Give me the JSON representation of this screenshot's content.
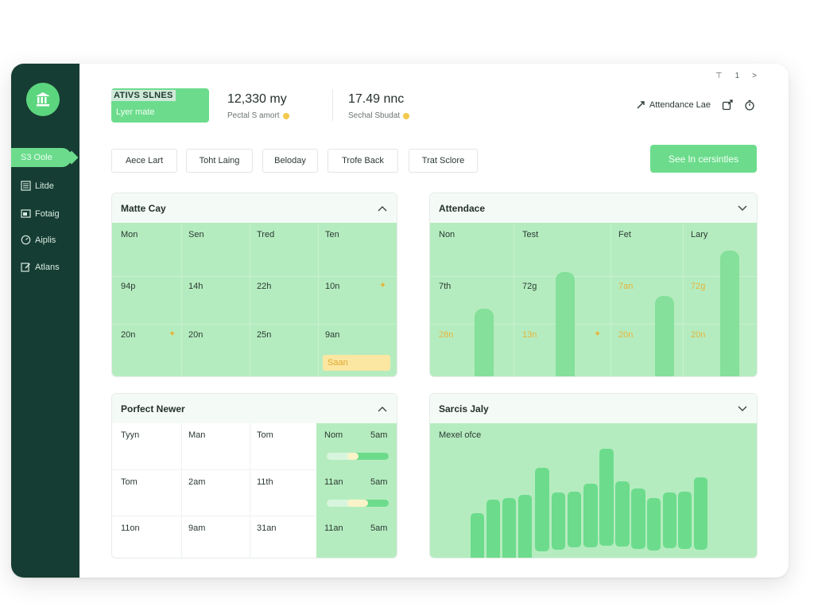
{
  "sidebar": {
    "active_label": "S3 Oole",
    "items": [
      {
        "label": "Litde",
        "icon": "list-icon"
      },
      {
        "label": "Fotaig",
        "icon": "image-icon"
      },
      {
        "label": "Aiplis",
        "icon": "gauge-icon"
      },
      {
        "label": "Atlans",
        "icon": "edit-icon"
      }
    ],
    "logo_icon": "bank-icon"
  },
  "window_controls": [
    "⊤",
    "1",
    ">"
  ],
  "stats": {
    "green_card": {
      "title": "ATIVS SLNES",
      "subtitle": "Lyer mate"
    },
    "stat1": {
      "value": "12,330 my",
      "label": "Pectal S amort"
    },
    "stat2": {
      "value": "17.49 nnc",
      "label": "Sechal Sbudat"
    }
  },
  "top_right": {
    "link_label": "Attendance Lae",
    "icons": [
      "link-icon",
      "share-icon",
      "timer-icon"
    ]
  },
  "tabs": [
    "Aece Lart",
    "Toht Laing",
    "Beloday",
    "Trofe Back",
    "Trat Sclore"
  ],
  "cta_label": "See ln cersintles",
  "panel_matte": {
    "title": "Matte Cay",
    "header_row": [
      "Mon",
      "Sen",
      "Tred",
      "Ten"
    ],
    "row2": [
      "94p",
      "14h",
      "22h",
      "10n"
    ],
    "row3": [
      "20n",
      "20n",
      "25n",
      "9an"
    ],
    "badge": "Saan"
  },
  "panel_attendance": {
    "title": "Attendace",
    "header_row": [
      "Non",
      "Test",
      "Fet",
      "Lary"
    ],
    "row2": [
      "7th",
      "72g",
      "7an",
      "72g"
    ],
    "row3": [
      "28n",
      "13n",
      "20n",
      "20n"
    ]
  },
  "panel_porfect": {
    "title": "Porfect Newer",
    "rows": [
      [
        "Tyyn",
        "Man",
        "Tom",
        "Nom",
        "5am"
      ],
      [
        "Tom",
        "2am",
        "11th",
        "11an",
        "5am"
      ],
      [
        "11on",
        "9am",
        "31an",
        "11an",
        "5am"
      ]
    ],
    "slider_values": [
      0.5,
      0.6
    ]
  },
  "panel_sarcis": {
    "title": "Sarcis Jaly",
    "subtitle": "Mexel ofce"
  },
  "colors": {
    "sidebar": "#163d33",
    "accent": "#6cdc8c",
    "light_green": "#b5ecbf",
    "amber": "#e8b33a"
  }
}
